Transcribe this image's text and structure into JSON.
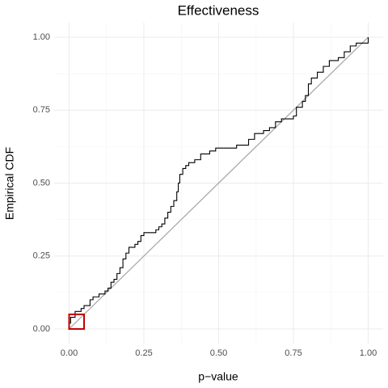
{
  "chart_data": {
    "type": "line",
    "title": "Effectiveness",
    "xlabel": "p−value",
    "ylabel": "Empirical CDF",
    "xlim": [
      -0.05,
      1.05
    ],
    "ylim": [
      -0.05,
      1.05
    ],
    "xticks": [
      {
        "value": 0,
        "label": "0.00"
      },
      {
        "value": 0.25,
        "label": "0.25"
      },
      {
        "value": 0.5,
        "label": "0.50"
      },
      {
        "value": 0.75,
        "label": "0.75"
      },
      {
        "value": 1,
        "label": "1.00"
      }
    ],
    "yticks": [
      {
        "value": 0,
        "label": "0.00"
      },
      {
        "value": 0.25,
        "label": "0.25"
      },
      {
        "value": 0.5,
        "label": "0.50"
      },
      {
        "value": 0.75,
        "label": "0.75"
      },
      {
        "value": 1,
        "label": "1.00"
      }
    ],
    "xminor": [
      0.125,
      0.375,
      0.625,
      0.875
    ],
    "yminor": [
      0.125,
      0.375,
      0.625,
      0.875
    ],
    "grid": true,
    "series": [
      {
        "color": "#000000",
        "drawstyle": "steps-post",
        "x": [
          0,
          0.005,
          0.02,
          0.04,
          0.05,
          0.07,
          0.08,
          0.1,
          0.12,
          0.13,
          0.14,
          0.15,
          0.16,
          0.17,
          0.18,
          0.19,
          0.2,
          0.22,
          0.23,
          0.24,
          0.25,
          0.29,
          0.3,
          0.31,
          0.32,
          0.33,
          0.34,
          0.35,
          0.36,
          0.365,
          0.37,
          0.38,
          0.39,
          0.4,
          0.42,
          0.44,
          0.47,
          0.49,
          0.56,
          0.6,
          0.62,
          0.65,
          0.67,
          0.69,
          0.71,
          0.75,
          0.76,
          0.78,
          0.79,
          0.8,
          0.81,
          0.83,
          0.85,
          0.87,
          0.9,
          0.92,
          0.94,
          0.96,
          1.0
        ],
        "values": [
          0.02,
          0.04,
          0.06,
          0.07,
          0.08,
          0.1,
          0.11,
          0.12,
          0.13,
          0.14,
          0.16,
          0.17,
          0.19,
          0.21,
          0.24,
          0.26,
          0.28,
          0.29,
          0.3,
          0.32,
          0.33,
          0.34,
          0.35,
          0.36,
          0.38,
          0.4,
          0.42,
          0.44,
          0.47,
          0.5,
          0.53,
          0.55,
          0.56,
          0.57,
          0.58,
          0.6,
          0.61,
          0.62,
          0.63,
          0.65,
          0.67,
          0.68,
          0.69,
          0.71,
          0.72,
          0.73,
          0.76,
          0.78,
          0.8,
          0.84,
          0.86,
          0.88,
          0.9,
          0.92,
          0.93,
          0.95,
          0.97,
          0.98,
          1.0
        ]
      },
      {
        "color": "#aaaaaa",
        "drawstyle": "default",
        "x": [
          0,
          1
        ],
        "values": [
          0,
          1
        ]
      }
    ],
    "highlight": {
      "xlim": [
        0,
        0.05
      ],
      "ylim": [
        0,
        0.05
      ],
      "color": "#c00000"
    }
  }
}
